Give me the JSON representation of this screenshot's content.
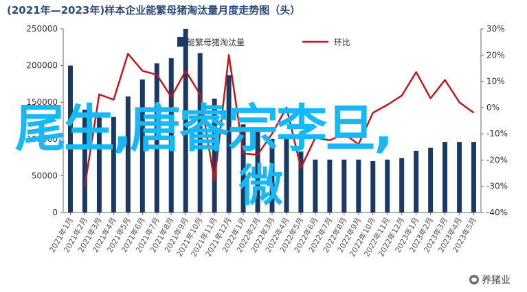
{
  "header": {
    "title": "(2021年—2023年)样本企业能繁母猪淘汰量月度走势图（头）"
  },
  "overlay": {
    "line1": "尾生,唐睿宗李旦,",
    "line2": "微"
  },
  "watermark": {
    "text": "养猪业",
    "icon": "wechat-icon"
  },
  "colors": {
    "bar": "#1b3a63",
    "line": "#c0161c",
    "overlay": "#19b8f4"
  },
  "chart_data": {
    "type": "bar",
    "title": "(2021年—2023年)样本企业能繁母猪淘汰量月度走势图（头）",
    "categories": [
      "2021年1月",
      "2021年2月",
      "2021年3月",
      "2021年4月",
      "2021年5月",
      "2021年6月",
      "2021年7月",
      "2021年8月",
      "2021年9月",
      "2021年10月",
      "2021年11月",
      "2021年12月",
      "2022年1月",
      "2022年2月",
      "2022年3月",
      "2022年4月",
      "2022年5月",
      "2022年6月",
      "2022年7月",
      "2022年8月",
      "2022年9月",
      "2022年10月",
      "2022年11月",
      "2022年12月",
      "2023年1月",
      "2023年2月",
      "2023年3月",
      "2023年4月",
      "2023年5月"
    ],
    "series": [
      {
        "name": "能繁母猪淘汰量",
        "type": "bar",
        "axis": "left",
        "values": [
          200000,
          140000,
          130000,
          130000,
          158000,
          181000,
          203000,
          210000,
          250000,
          217000,
          155000,
          187000,
          120000,
          110000,
          100000,
          100000,
          83000,
          72000,
          72000,
          72000,
          72000,
          70000,
          72000,
          74000,
          84000,
          88000,
          96000,
          96000,
          96000
        ]
      },
      {
        "name": "环比",
        "type": "line",
        "axis": "right",
        "values": [
          null,
          -30,
          5,
          3,
          20.5,
          14,
          12.5,
          4,
          14,
          5,
          -28,
          20,
          -17.5,
          -18,
          -10,
          0,
          -23,
          -11.5,
          -12.5,
          -10,
          -14,
          -2,
          1,
          4.5,
          13.5,
          3.5,
          10.5,
          2,
          -2
        ]
      }
    ],
    "left_axis": {
      "ylim": [
        0,
        250000
      ],
      "ticks": [
        "0",
        "50000",
        "100000",
        "150000",
        "200000",
        "250000"
      ]
    },
    "right_axis": {
      "ylim": [
        -40,
        30
      ],
      "ticks": [
        "-40%",
        "-30%",
        "-20%",
        "-10%",
        "0%",
        "10%",
        "20%",
        "30%"
      ]
    },
    "legend": {
      "position": "top"
    },
    "grid": false
  }
}
